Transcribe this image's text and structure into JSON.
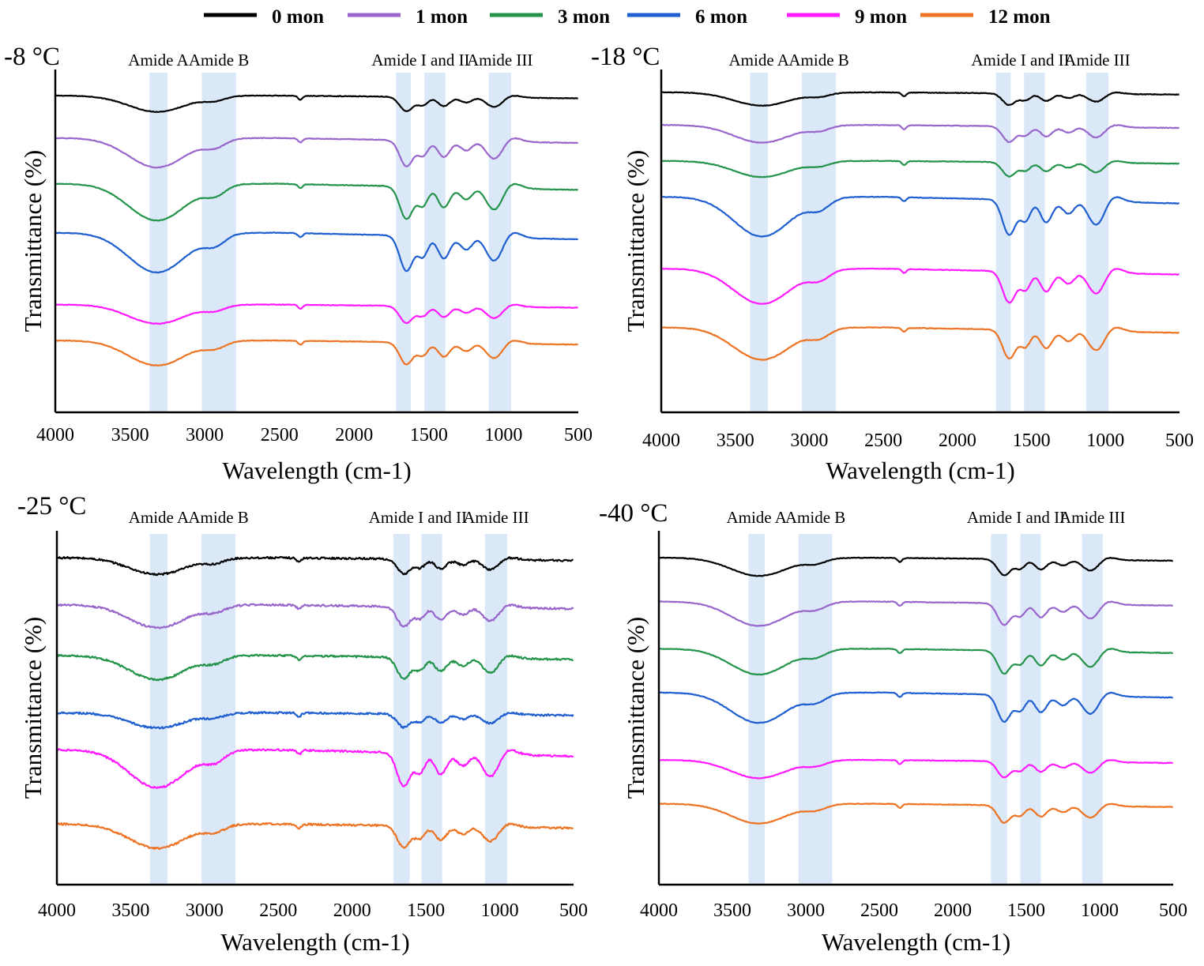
{
  "legend": [
    {
      "label": "0 mon",
      "color": "#000000"
    },
    {
      "label": "1 mon",
      "color": "#9966cc"
    },
    {
      "label": "3 mon",
      "color": "#23944a"
    },
    {
      "label": "6 mon",
      "color": "#1f5fcf"
    },
    {
      "label": "9 mon",
      "color": "#ff1aff"
    },
    {
      "label": "12 mon",
      "color": "#ec7424"
    }
  ],
  "region_color": "#dbe8f7",
  "chart_data": [
    {
      "type": "line",
      "title": "-8 °C",
      "xlabel": "Wavelength (cm-1)",
      "ylabel": "Transmittance (%)",
      "xlim": [
        4000,
        500
      ],
      "xticks": [
        "4000",
        "3500",
        "3000",
        "2500",
        "2000",
        "1500",
        "1000",
        "500"
      ],
      "regions": [
        {
          "label": "Amide A",
          "range": [
            3370,
            3250
          ]
        },
        {
          "label": "Amide B",
          "range": [
            3020,
            2790
          ]
        },
        {
          "label": "Amide I and II",
          "ranges": [
            [
              1720,
              1620
            ],
            [
              1530,
              1390
            ]
          ]
        },
        {
          "label": "Amide III",
          "range": [
            1100,
            950
          ]
        }
      ],
      "series": [
        {
          "name": "0 mon",
          "baseline": 97,
          "amp": 0.55
        },
        {
          "name": "1 mon",
          "baseline": 84,
          "amp": 1.0
        },
        {
          "name": "3 mon",
          "baseline": 70,
          "amp": 1.25
        },
        {
          "name": "6 mon",
          "baseline": 55,
          "amp": 1.35
        },
        {
          "name": "9 mon",
          "baseline": 33,
          "amp": 0.65
        },
        {
          "name": "12 mon",
          "baseline": 22,
          "amp": 0.85
        }
      ]
    },
    {
      "type": "line",
      "title": "-18 °C",
      "xlabel": "Wavelength (cm-1)",
      "ylabel": "Transmittance (%)",
      "xlim": [
        4000,
        500
      ],
      "xticks": [
        "4000",
        "3500",
        "3000",
        "2500",
        "2000",
        "1500",
        "1000",
        "500"
      ],
      "regions": [
        {
          "label": "Amide A",
          "range": [
            3400,
            3280
          ]
        },
        {
          "label": "Amide B",
          "range": [
            3050,
            2820
          ]
        },
        {
          "label": "Amide I and II",
          "ranges": [
            [
              1740,
              1640
            ],
            [
              1550,
              1410
            ]
          ]
        },
        {
          "label": "Amide III",
          "range": [
            1130,
            980
          ]
        }
      ],
      "series": [
        {
          "name": "0 mon",
          "baseline": 98,
          "amp": 0.45
        },
        {
          "name": "1 mon",
          "baseline": 88,
          "amp": 0.6
        },
        {
          "name": "3 mon",
          "baseline": 77,
          "amp": 0.55
        },
        {
          "name": "6 mon",
          "baseline": 66,
          "amp": 1.35
        },
        {
          "name": "9 mon",
          "baseline": 44,
          "amp": 1.2
        },
        {
          "name": "12 mon",
          "baseline": 26,
          "amp": 1.1
        }
      ]
    },
    {
      "type": "line",
      "title": "-25 °C",
      "xlabel": "Wavelength (cm-1)",
      "ylabel": "Transmittance (%)",
      "xlim": [
        4000,
        500
      ],
      "xticks": [
        "4000",
        "3500",
        "3000",
        "2500",
        "2000",
        "1500",
        "1000",
        "500"
      ],
      "regions": [
        {
          "label": "Amide A",
          "range": [
            3370,
            3250
          ]
        },
        {
          "label": "Amide B",
          "range": [
            3020,
            2790
          ]
        },
        {
          "label": "Amide I and II",
          "ranges": [
            [
              1720,
              1610
            ],
            [
              1530,
              1390
            ]
          ]
        },
        {
          "label": "Amide III",
          "range": [
            1100,
            950
          ]
        }
      ],
      "series": [
        {
          "name": "0 mon",
          "baseline": 97,
          "amp": 0.55
        },
        {
          "name": "1 mon",
          "baseline": 83,
          "amp": 0.75
        },
        {
          "name": "3 mon",
          "baseline": 68,
          "amp": 0.8
        },
        {
          "name": "6 mon",
          "baseline": 51,
          "amp": 0.5
        },
        {
          "name": "9 mon",
          "baseline": 40,
          "amp": 1.25
        },
        {
          "name": "12 mon",
          "baseline": 18,
          "amp": 0.8
        }
      ]
    },
    {
      "type": "line",
      "title": "-40 °C",
      "xlabel": "Wavelength (cm-1)",
      "ylabel": "Transmittance (%)",
      "xlim": [
        4000,
        500
      ],
      "xticks": [
        "4000",
        "3500",
        "3000",
        "2500",
        "2000",
        "1500",
        "1000",
        "500"
      ],
      "regions": [
        {
          "label": "Amide A",
          "range": [
            3390,
            3280
          ]
        },
        {
          "label": "Amide B",
          "range": [
            3050,
            2820
          ]
        },
        {
          "label": "Amide I and II",
          "ranges": [
            [
              1740,
              1630
            ],
            [
              1540,
              1400
            ]
          ]
        },
        {
          "label": "Amide III",
          "range": [
            1120,
            980
          ]
        }
      ],
      "series": [
        {
          "name": "0 mon",
          "baseline": 97,
          "amp": 0.6
        },
        {
          "name": "1 mon",
          "baseline": 84,
          "amp": 0.8
        },
        {
          "name": "3 mon",
          "baseline": 70,
          "amp": 0.85
        },
        {
          "name": "6 mon",
          "baseline": 57,
          "amp": 1.0
        },
        {
          "name": "9 mon",
          "baseline": 37,
          "amp": 0.6
        },
        {
          "name": "12 mon",
          "baseline": 24,
          "amp": 0.65
        }
      ]
    }
  ]
}
